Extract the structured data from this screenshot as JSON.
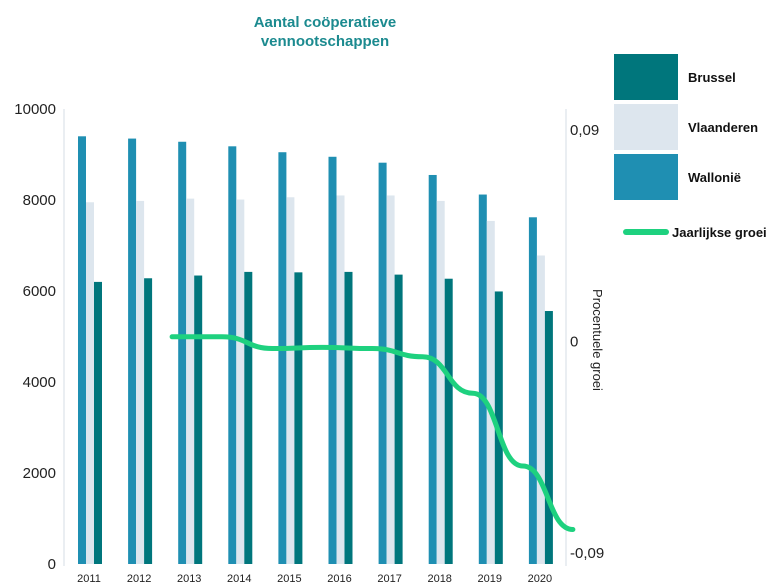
{
  "chart_data": {
    "type": "bar",
    "title": "Aantal coöperatieve vennootschappen",
    "title_lines": [
      "Aantal coöperatieve",
      "vennootschappen"
    ],
    "title_color": "#1b8a8f",
    "categories": [
      "2011",
      "2012",
      "2013",
      "2014",
      "2015",
      "2016",
      "2017",
      "2018",
      "2019",
      "2020"
    ],
    "series": [
      {
        "name": "Wallonië",
        "color": "#1f8fb2",
        "values": [
          9400,
          9350,
          9280,
          9180,
          9050,
          8950,
          8820,
          8550,
          8120,
          7620
        ]
      },
      {
        "name": "Vlaanderen",
        "color": "#dde6ee",
        "values": [
          7950,
          7980,
          8030,
          8010,
          8060,
          8100,
          8100,
          7980,
          7540,
          6780
        ]
      },
      {
        "name": "Brussel",
        "color": "#00767c",
        "values": [
          6200,
          6280,
          6340,
          6420,
          6410,
          6420,
          6360,
          6270,
          5990,
          5560
        ]
      }
    ],
    "line_series": {
      "name": "Jaarlijkse groei",
      "color": "#1ed17f",
      "axis": "right",
      "categories": [
        "2012",
        "2013",
        "2014",
        "2015",
        "2016",
        "2017",
        "2018",
        "2019",
        "2020"
      ],
      "values": [
        0.002,
        0.002,
        -0.003,
        -0.0025,
        -0.003,
        -0.0065,
        -0.022,
        -0.053,
        -0.08
      ]
    },
    "y_left": {
      "ylim": [
        0,
        10000
      ],
      "ticks": [
        0,
        2000,
        4000,
        6000,
        8000,
        10000
      ]
    },
    "y_right": {
      "label": "Procentuele groei",
      "ylim": [
        -0.09,
        0.09
      ],
      "ticks": [
        {
          "value": 0.09,
          "label": "0,09"
        },
        {
          "value": 0,
          "label": "0"
        },
        {
          "value": -0.09,
          "label": "-0,09"
        }
      ]
    },
    "legend": {
      "placement": "right",
      "items": [
        {
          "label": "Brussel",
          "color": "#00767c",
          "kind": "box"
        },
        {
          "label": "Vlaanderen",
          "color": "#dde6ee",
          "kind": "box"
        },
        {
          "label": "Wallonië",
          "color": "#1f8fb2",
          "kind": "box"
        },
        {
          "label": "Jaarlijkse groei",
          "color": "#1ed17f",
          "kind": "line"
        }
      ]
    }
  }
}
